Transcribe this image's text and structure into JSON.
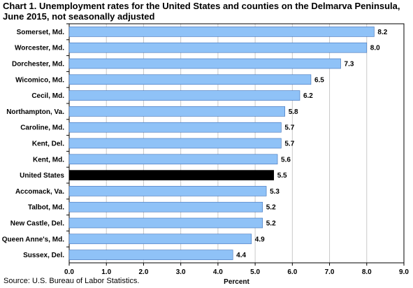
{
  "chart_data": {
    "type": "bar",
    "orientation": "horizontal",
    "title": "Chart 1. Unemployment rates for the United States and counties on the Delmarva Peninsula, June 2015, not seasonally adjusted",
    "xlabel": "Percent",
    "ylabel": "",
    "xlim": [
      0,
      9
    ],
    "xticks": [
      "0.0",
      "1.0",
      "2.0",
      "3.0",
      "4.0",
      "5.0",
      "6.0",
      "7.0",
      "8.0",
      "9.0"
    ],
    "grid": true,
    "legend": "none",
    "categories": [
      "Somerset, Md.",
      "Worcester, Md.",
      "Dorchester, Md.",
      "Wicomico, Md.",
      "Cecil, Md.",
      "Northampton, Va.",
      "Caroline, Md.",
      "Kent, Del.",
      "Kent, Md.",
      "United States",
      "Accomack, Va.",
      "Talbot, Md.",
      "New Castle, Del.",
      "Queen Anne's, Md.",
      "Sussex, Del."
    ],
    "values": [
      8.2,
      8.0,
      7.3,
      6.5,
      6.2,
      5.8,
      5.7,
      5.7,
      5.6,
      5.5,
      5.3,
      5.2,
      5.2,
      4.9,
      4.4
    ],
    "value_labels": [
      "8.2",
      "8.0",
      "7.3",
      "6.5",
      "6.2",
      "5.8",
      "5.7",
      "5.7",
      "5.6",
      "5.5",
      "5.3",
      "5.2",
      "5.2",
      "4.9",
      "4.4"
    ],
    "colors": {
      "bar": "#8fc2f7",
      "highlight": "#000000",
      "border": "#3d6fb8",
      "grid": "#c8c8c8"
    },
    "highlight_category": "United States"
  },
  "source": "Source: U.S. Bureau of Labor Statistics."
}
